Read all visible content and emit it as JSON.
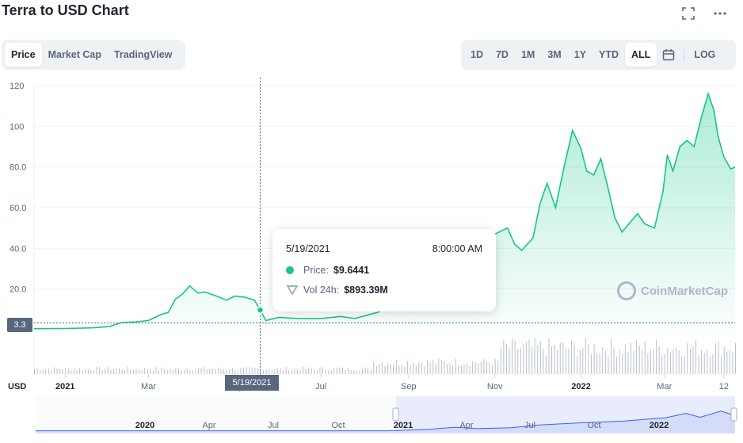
{
  "header": {
    "title": "Terra to USD Chart",
    "fullscreen_icon": "expand-icon",
    "more_icon": "more-horizontal-icon"
  },
  "tabs": [
    {
      "label": "Price",
      "active": true
    },
    {
      "label": "Market Cap",
      "active": false
    },
    {
      "label": "TradingView",
      "active": false
    }
  ],
  "ranges": [
    {
      "label": "1D",
      "active": false
    },
    {
      "label": "7D",
      "active": false
    },
    {
      "label": "1M",
      "active": false
    },
    {
      "label": "3M",
      "active": false
    },
    {
      "label": "1Y",
      "active": false
    },
    {
      "label": "YTD",
      "active": false
    },
    {
      "label": "ALL",
      "active": true
    }
  ],
  "calendar_icon": "calendar-icon",
  "log_label": "LOG",
  "tooltip": {
    "date": "5/19/2021",
    "time": "8:00:00 AM",
    "price_label": "Price:",
    "price_value": "$9.6441",
    "vol_label": "Vol 24h:",
    "vol_value": "$893.39M"
  },
  "current_price_tag": "3.3",
  "hover_date_tag": "5/19/2021",
  "watermark": "CoinMarketCap",
  "colors": {
    "line": "#16c784",
    "fill_top": "#16c784",
    "volume": "#a6b0c3",
    "navigator_fill": "#dfe6fb",
    "navigator_line": "#3861fb"
  },
  "chart_data": {
    "type": "line",
    "title": "Terra to USD Chart",
    "xlabel": "",
    "ylabel": "",
    "currency_label": "USD",
    "ylim": [
      0,
      120
    ],
    "y_ticks": [
      {
        "value": 20,
        "label": "20.0"
      },
      {
        "value": 40,
        "label": "40.0"
      },
      {
        "value": 60,
        "label": "60.0"
      },
      {
        "value": 80,
        "label": "80.0"
      },
      {
        "value": 100,
        "label": "100"
      },
      {
        "value": 120,
        "label": "120"
      }
    ],
    "x_ticks": [
      {
        "label": "2021",
        "bold": true,
        "date": "2021-01-01"
      },
      {
        "label": "Mar",
        "bold": false,
        "date": "2021-03-01"
      },
      {
        "label": "May",
        "bold": false,
        "date": "2021-05-01"
      },
      {
        "label": "Jul",
        "bold": false,
        "date": "2021-07-01"
      },
      {
        "label": "Sep",
        "bold": false,
        "date": "2021-09-01"
      },
      {
        "label": "Nov",
        "bold": false,
        "date": "2021-11-01"
      },
      {
        "label": "2022",
        "bold": true,
        "date": "2022-01-01"
      },
      {
        "label": "Mar",
        "bold": false,
        "date": "2022-03-01"
      },
      {
        "label": "12",
        "bold": false,
        "date": "2022-04-12"
      }
    ],
    "x_range": [
      "2020-12-10",
      "2022-04-20"
    ],
    "series": [
      {
        "values": [
          [
            "2020-12-10",
            0.5
          ],
          [
            "2021-01-01",
            0.6
          ],
          [
            "2021-01-20",
            0.9
          ],
          [
            "2021-02-01",
            1.5
          ],
          [
            "2021-02-10",
            3.5
          ],
          [
            "2021-02-20",
            3.8
          ],
          [
            "2021-03-01",
            4.5
          ],
          [
            "2021-03-10",
            7.5
          ],
          [
            "2021-03-15",
            8.5
          ],
          [
            "2021-03-20",
            15.0
          ],
          [
            "2021-03-25",
            17.5
          ],
          [
            "2021-03-30",
            21.5
          ],
          [
            "2021-04-05",
            18.0
          ],
          [
            "2021-04-10",
            18.5
          ],
          [
            "2021-04-20",
            16.0
          ],
          [
            "2021-04-25",
            14.5
          ],
          [
            "2021-05-01",
            16.5
          ],
          [
            "2021-05-08",
            16.0
          ],
          [
            "2021-05-15",
            14.5
          ],
          [
            "2021-05-19",
            9.6441
          ],
          [
            "2021-05-23",
            4.5
          ],
          [
            "2021-06-01",
            6.0
          ],
          [
            "2021-06-15",
            5.5
          ],
          [
            "2021-07-01",
            5.5
          ],
          [
            "2021-07-15",
            6.5
          ],
          [
            "2021-07-25",
            5.5
          ],
          [
            "2021-08-10",
            8.5
          ],
          [
            "2021-08-20",
            12.0
          ],
          [
            "2021-09-01",
            28.0
          ],
          [
            "2021-09-07",
            37.0
          ],
          [
            "2021-09-15",
            33.0
          ],
          [
            "2021-09-25",
            38.0
          ],
          [
            "2021-10-05",
            40.0
          ],
          [
            "2021-10-15",
            45.0
          ],
          [
            "2021-10-25",
            43.0
          ],
          [
            "2021-11-01",
            47.0
          ],
          [
            "2021-11-10",
            50.0
          ],
          [
            "2021-11-15",
            42.0
          ],
          [
            "2021-11-20",
            39.0
          ],
          [
            "2021-11-28",
            45.0
          ],
          [
            "2021-12-03",
            62.0
          ],
          [
            "2021-12-08",
            72.0
          ],
          [
            "2021-12-14",
            60.0
          ],
          [
            "2021-12-20",
            80.0
          ],
          [
            "2021-12-26",
            98.0
          ],
          [
            "2022-01-01",
            89.0
          ],
          [
            "2022-01-05",
            78.0
          ],
          [
            "2022-01-10",
            76.0
          ],
          [
            "2022-01-15",
            84.0
          ],
          [
            "2022-01-20",
            70.0
          ],
          [
            "2022-01-25",
            55.0
          ],
          [
            "2022-01-30",
            48.0
          ],
          [
            "2022-02-05",
            53.0
          ],
          [
            "2022-02-10",
            57.0
          ],
          [
            "2022-02-15",
            52.0
          ],
          [
            "2022-02-22",
            50.0
          ],
          [
            "2022-02-28",
            68.0
          ],
          [
            "2022-03-03",
            86.0
          ],
          [
            "2022-03-07",
            78.0
          ],
          [
            "2022-03-12",
            90.0
          ],
          [
            "2022-03-17",
            93.0
          ],
          [
            "2022-03-22",
            90.0
          ],
          [
            "2022-03-27",
            104.0
          ],
          [
            "2022-04-01",
            116.0
          ],
          [
            "2022-04-05",
            108.0
          ],
          [
            "2022-04-08",
            95.0
          ],
          [
            "2022-04-12",
            85.0
          ],
          [
            "2022-04-17",
            79.0
          ],
          [
            "2022-04-20",
            80.0
          ]
        ]
      }
    ],
    "navigator_ticks": [
      "2020",
      "Apr",
      "Jul",
      "Oct",
      "2021",
      "Apr",
      "Jul",
      "Oct",
      "2022"
    ]
  }
}
